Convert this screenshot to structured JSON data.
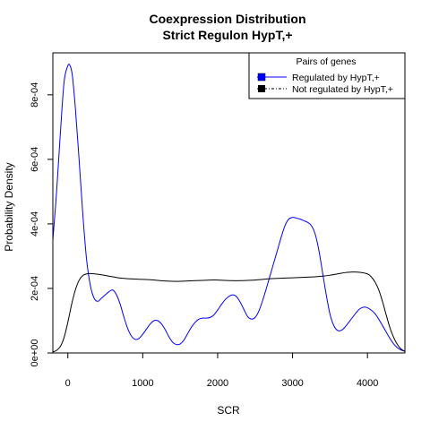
{
  "chart_data": {
    "type": "line",
    "title": "Coexpression Distribution",
    "subtitle": "Strict Regulon HypT,+",
    "xlabel": "SCR",
    "ylabel": "Probability Density",
    "xlim": [
      -200,
      4500
    ],
    "ylim": [
      0,
      0.00093
    ],
    "x_ticks": [
      0,
      1000,
      2000,
      3000,
      4000
    ],
    "x_tick_labels": [
      "0",
      "1000",
      "2000",
      "3000",
      "4000"
    ],
    "y_ticks": [
      0,
      0.0002,
      0.0004,
      0.0006,
      0.0008
    ],
    "y_tick_labels": [
      "0e+00",
      "2e-04",
      "4e-04",
      "6e-04",
      "8e-04"
    ],
    "grid": false,
    "legend": {
      "title": "Pairs of genes",
      "position": "top-right",
      "entries": [
        "Regulated by  HypT,+",
        "Not regulated by  HypT,+"
      ]
    },
    "series": [
      {
        "name": "Regulated by  HypT,+",
        "color": "#0000ff",
        "x": [
          -200,
          -150,
          -100,
          -50,
          0,
          30,
          60,
          100,
          150,
          200,
          250,
          300,
          350,
          400,
          450,
          500,
          550,
          600,
          650,
          700,
          750,
          800,
          850,
          900,
          950,
          1000,
          1050,
          1100,
          1150,
          1200,
          1250,
          1300,
          1350,
          1400,
          1450,
          1500,
          1550,
          1600,
          1650,
          1700,
          1750,
          1800,
          1850,
          1900,
          1950,
          2000,
          2050,
          2100,
          2150,
          2200,
          2250,
          2300,
          2350,
          2400,
          2450,
          2500,
          2550,
          2600,
          2650,
          2700,
          2750,
          2800,
          2850,
          2900,
          2950,
          3000,
          3050,
          3100,
          3150,
          3200,
          3250,
          3300,
          3350,
          3400,
          3450,
          3500,
          3550,
          3600,
          3650,
          3700,
          3750,
          3800,
          3850,
          3900,
          3950,
          4000,
          4050,
          4100,
          4150,
          4200,
          4250,
          4300,
          4350,
          4400,
          4450,
          4500
        ],
        "y": [
          0.00035,
          0.0005,
          0.00068,
          0.00084,
          0.00089,
          0.00089,
          0.00086,
          0.00076,
          0.0006,
          0.00043,
          0.00029,
          0.00021,
          0.00017,
          0.00016,
          0.00017,
          0.00018,
          0.00019,
          0.000195,
          0.00018,
          0.00015,
          0.00011,
          7.5e-05,
          5.2e-05,
          4.2e-05,
          4.5e-05,
          5.8e-05,
          7.4e-05,
          9e-05,
          0.0001,
          0.0001,
          9e-05,
          7.2e-05,
          5e-05,
          3.3e-05,
          2.6e-05,
          2.8e-05,
          4e-05,
          6e-05,
          8e-05,
          9.5e-05,
          0.000105,
          0.000108,
          0.000108,
          0.00011,
          0.000118,
          0.000133,
          0.00015,
          0.000165,
          0.000175,
          0.00018,
          0.000175,
          0.000158,
          0.000135,
          0.000113,
          0.000105,
          0.00011,
          0.00013,
          0.000162,
          0.0002,
          0.00024,
          0.00028,
          0.00032,
          0.00036,
          0.000395,
          0.000415,
          0.00042,
          0.000418,
          0.000415,
          0.00041,
          0.000405,
          0.000395,
          0.00037,
          0.00032,
          0.00025,
          0.00018,
          0.00012,
          8.5e-05,
          7e-05,
          7e-05,
          8e-05,
          9.5e-05,
          0.00011,
          0.000125,
          0.000137,
          0.000142,
          0.00014,
          0.000133,
          0.000122,
          0.000105,
          8.5e-05,
          6.5e-05,
          4.5e-05,
          2.8e-05,
          1.6e-05,
          9e-06,
          5e-06
        ]
      },
      {
        "name": "Not regulated by  HypT,+",
        "color": "#000000",
        "x": [
          -200,
          -150,
          -100,
          -50,
          0,
          50,
          100,
          150,
          200,
          250,
          300,
          400,
          500,
          600,
          700,
          800,
          900,
          1000,
          1100,
          1200,
          1300,
          1400,
          1500,
          1600,
          1700,
          1800,
          1900,
          2000,
          2100,
          2200,
          2300,
          2400,
          2500,
          2600,
          2700,
          2800,
          2900,
          3000,
          3100,
          3200,
          3300,
          3400,
          3500,
          3600,
          3700,
          3800,
          3900,
          4000,
          4050,
          4100,
          4150,
          4200,
          4250,
          4300,
          4350,
          4400,
          4450,
          4500
        ],
        "y": [
          3e-06,
          8e-06,
          2e-05,
          4.8e-05,
          9.5e-05,
          0.00015,
          0.000195,
          0.000225,
          0.00024,
          0.000245,
          0.000246,
          0.000244,
          0.00024,
          0.000236,
          0.000232,
          0.00023,
          0.000229,
          0.000228,
          0.000227,
          0.000225,
          0.000223,
          0.000222,
          0.000222,
          0.000223,
          0.000224,
          0.000225,
          0.000226,
          0.000226,
          0.000225,
          0.000224,
          0.000224,
          0.000225,
          0.000226,
          0.000228,
          0.00023,
          0.000231,
          0.000232,
          0.000233,
          0.000234,
          0.000235,
          0.000236,
          0.000238,
          0.000241,
          0.000245,
          0.000249,
          0.000251,
          0.00025,
          0.000245,
          0.000236,
          0.00022,
          0.000196,
          0.00016,
          0.000118,
          7.8e-05,
          4.8e-05,
          2.6e-05,
          1.2e-05,
          5e-06
        ]
      }
    ]
  }
}
